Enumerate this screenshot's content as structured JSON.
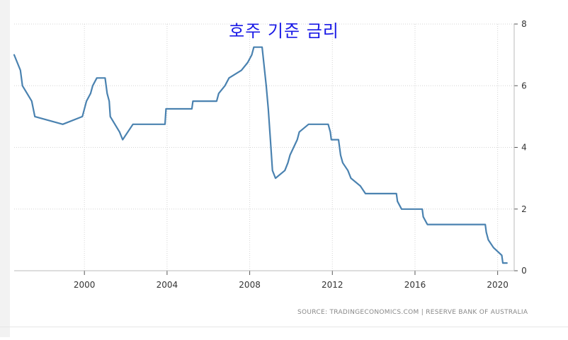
{
  "title": "호주 기준 금리",
  "source": "SOURCE: TRADINGECONOMICS.COM | RESERVE BANK OF AUSTRALIA",
  "colors": {
    "line": "#4a82b0",
    "title": "#1a1ae6",
    "grid": "#d4d4d4",
    "axis": "#555555"
  },
  "chart_data": {
    "type": "line",
    "title": "호주 기준 금리",
    "xlabel": "",
    "ylabel": "",
    "xlim": [
      1996.6,
      2020.8
    ],
    "ylim": [
      0,
      8
    ],
    "x_ticks": [
      {
        "value": 2000,
        "label": "2000"
      },
      {
        "value": 2004,
        "label": "2004"
      },
      {
        "value": 2008,
        "label": "2008"
      },
      {
        "value": 2012,
        "label": "2012"
      },
      {
        "value": 2016,
        "label": "2016"
      },
      {
        "value": 2020,
        "label": "2020"
      }
    ],
    "y_ticks": [
      {
        "value": 0,
        "label": "0"
      },
      {
        "value": 2,
        "label": "2"
      },
      {
        "value": 4,
        "label": "4"
      },
      {
        "value": 6,
        "label": "6"
      },
      {
        "value": 8,
        "label": "8"
      }
    ],
    "grid": true,
    "y_axis_side": "right",
    "series": [
      {
        "name": "",
        "step": true,
        "points": [
          [
            1996.6,
            7.0
          ],
          [
            1996.9,
            6.5
          ],
          [
            1997.0,
            6.0
          ],
          [
            1997.45,
            5.5
          ],
          [
            1997.6,
            5.0
          ],
          [
            1998.95,
            4.75
          ],
          [
            1999.9,
            5.0
          ],
          [
            2000.1,
            5.5
          ],
          [
            2000.3,
            5.75
          ],
          [
            2000.4,
            6.0
          ],
          [
            2000.6,
            6.25
          ],
          [
            2001.0,
            6.25
          ],
          [
            2001.1,
            5.75
          ],
          [
            2001.2,
            5.5
          ],
          [
            2001.25,
            5.0
          ],
          [
            2001.7,
            4.5
          ],
          [
            2001.85,
            4.25
          ],
          [
            2002.35,
            4.75
          ],
          [
            2003.9,
            4.75
          ],
          [
            2003.95,
            5.25
          ],
          [
            2005.2,
            5.25
          ],
          [
            2005.25,
            5.5
          ],
          [
            2006.4,
            5.5
          ],
          [
            2006.5,
            5.75
          ],
          [
            2006.8,
            6.0
          ],
          [
            2007.0,
            6.25
          ],
          [
            2007.6,
            6.5
          ],
          [
            2007.9,
            6.75
          ],
          [
            2008.1,
            7.0
          ],
          [
            2008.2,
            7.25
          ],
          [
            2008.6,
            7.25
          ],
          [
            2008.8,
            6.0
          ],
          [
            2008.9,
            5.25
          ],
          [
            2009.0,
            4.25
          ],
          [
            2009.1,
            3.25
          ],
          [
            2009.25,
            3.0
          ],
          [
            2009.7,
            3.25
          ],
          [
            2009.85,
            3.5
          ],
          [
            2009.95,
            3.75
          ],
          [
            2010.3,
            4.25
          ],
          [
            2010.4,
            4.5
          ],
          [
            2010.85,
            4.75
          ],
          [
            2011.8,
            4.75
          ],
          [
            2011.9,
            4.5
          ],
          [
            2011.95,
            4.25
          ],
          [
            2012.3,
            4.25
          ],
          [
            2012.4,
            3.75
          ],
          [
            2012.5,
            3.5
          ],
          [
            2012.75,
            3.25
          ],
          [
            2012.9,
            3.0
          ],
          [
            2013.35,
            2.75
          ],
          [
            2013.6,
            2.5
          ],
          [
            2015.1,
            2.5
          ],
          [
            2015.15,
            2.25
          ],
          [
            2015.35,
            2.0
          ],
          [
            2016.35,
            2.0
          ],
          [
            2016.4,
            1.75
          ],
          [
            2016.6,
            1.5
          ],
          [
            2019.4,
            1.5
          ],
          [
            2019.45,
            1.25
          ],
          [
            2019.55,
            1.0
          ],
          [
            2019.8,
            0.75
          ],
          [
            2020.2,
            0.5
          ],
          [
            2020.25,
            0.25
          ],
          [
            2020.45,
            0.25
          ]
        ]
      }
    ]
  }
}
